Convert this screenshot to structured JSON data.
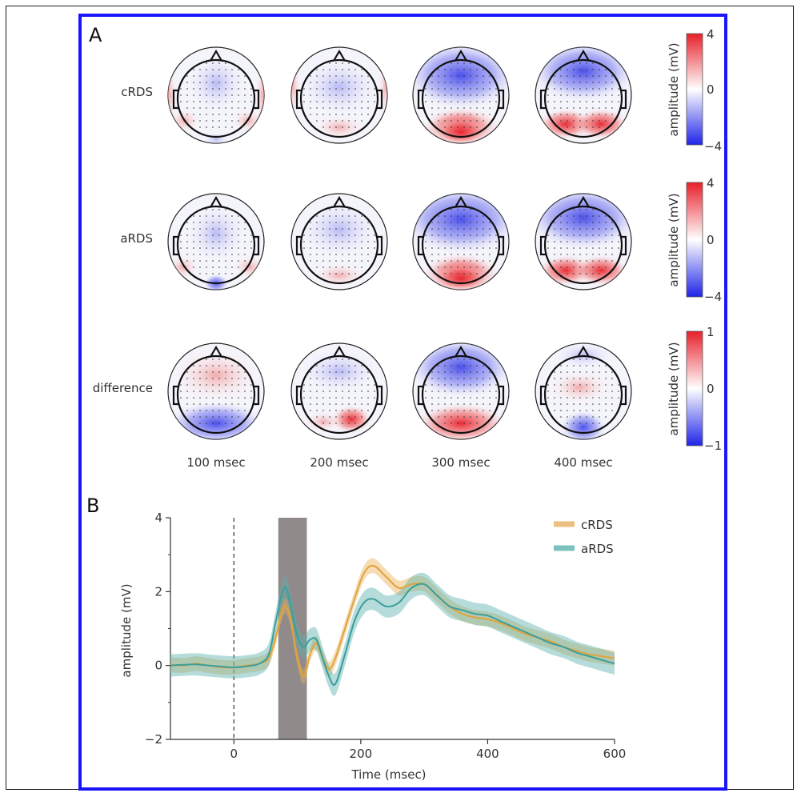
{
  "panel_a": {
    "letter": "A",
    "row_labels": [
      "cRDS",
      "aRDS",
      "difference"
    ],
    "time_labels": [
      "100 msec",
      "200 msec",
      "300 msec",
      "400 msec"
    ],
    "colorbars": [
      {
        "ylabel": "amplitude (mV)",
        "ticks": [
          "4",
          "0",
          "−4"
        ]
      },
      {
        "ylabel": "amplitude (mV)",
        "ticks": [
          "4",
          "0",
          "−4"
        ]
      },
      {
        "ylabel": "amplitude (mV)",
        "ticks": [
          "1",
          "0",
          "−1"
        ]
      }
    ],
    "colors": {
      "positive": "#e8202a",
      "neutral": "#ffffff",
      "negative": "#1f24e6"
    }
  },
  "panel_b": {
    "letter": "B"
  },
  "chart_data": {
    "type": "line",
    "xlabel": "Time (msec)",
    "ylabel": "amplitude (mV)",
    "xlim": [
      -100,
      600
    ],
    "ylim": [
      -2,
      4
    ],
    "xticks": [
      0,
      200,
      400,
      600
    ],
    "yticks": [
      -2,
      0,
      2,
      4
    ],
    "xtick_labels": [
      "0",
      "200",
      "400",
      "600"
    ],
    "ytick_labels": [
      "−2",
      "0",
      "2",
      "4"
    ],
    "stimulus_onset": 0,
    "shaded_window": [
      70,
      115
    ],
    "legend": "top-right",
    "x": [
      -100,
      -80,
      -60,
      -40,
      -20,
      0,
      20,
      40,
      55,
      65,
      75,
      82,
      90,
      100,
      110,
      120,
      130,
      140,
      150,
      160,
      175,
      190,
      205,
      220,
      240,
      260,
      280,
      300,
      320,
      340,
      360,
      380,
      400,
      420,
      440,
      460,
      480,
      500,
      520,
      540,
      560,
      580,
      600
    ],
    "series": [
      {
        "name": "cRDS",
        "color": "#e0a43a",
        "values": [
          0.02,
          0.0,
          0.05,
          0.0,
          -0.05,
          -0.05,
          0.0,
          0.05,
          0.2,
          0.7,
          1.4,
          1.6,
          1.2,
          0.2,
          -0.3,
          0.3,
          0.6,
          0.2,
          -0.1,
          0.2,
          1.0,
          1.8,
          2.5,
          2.7,
          2.4,
          2.1,
          2.2,
          2.2,
          1.9,
          1.6,
          1.4,
          1.3,
          1.25,
          1.15,
          1.0,
          0.85,
          0.75,
          0.65,
          0.5,
          0.4,
          0.3,
          0.25,
          0.2
        ],
        "band": 0.2
      },
      {
        "name": "aRDS",
        "color": "#3a9e9c",
        "values": [
          0.0,
          0.02,
          0.03,
          0.0,
          -0.03,
          -0.05,
          -0.02,
          0.05,
          0.3,
          1.1,
          1.9,
          2.1,
          1.6,
          0.8,
          0.5,
          0.7,
          0.7,
          0.2,
          -0.3,
          -0.5,
          0.3,
          1.2,
          1.7,
          1.8,
          1.6,
          1.7,
          2.1,
          2.2,
          1.9,
          1.6,
          1.5,
          1.4,
          1.35,
          1.2,
          1.05,
          0.9,
          0.75,
          0.6,
          0.5,
          0.35,
          0.25,
          0.15,
          0.05
        ],
        "band": 0.3
      }
    ]
  }
}
